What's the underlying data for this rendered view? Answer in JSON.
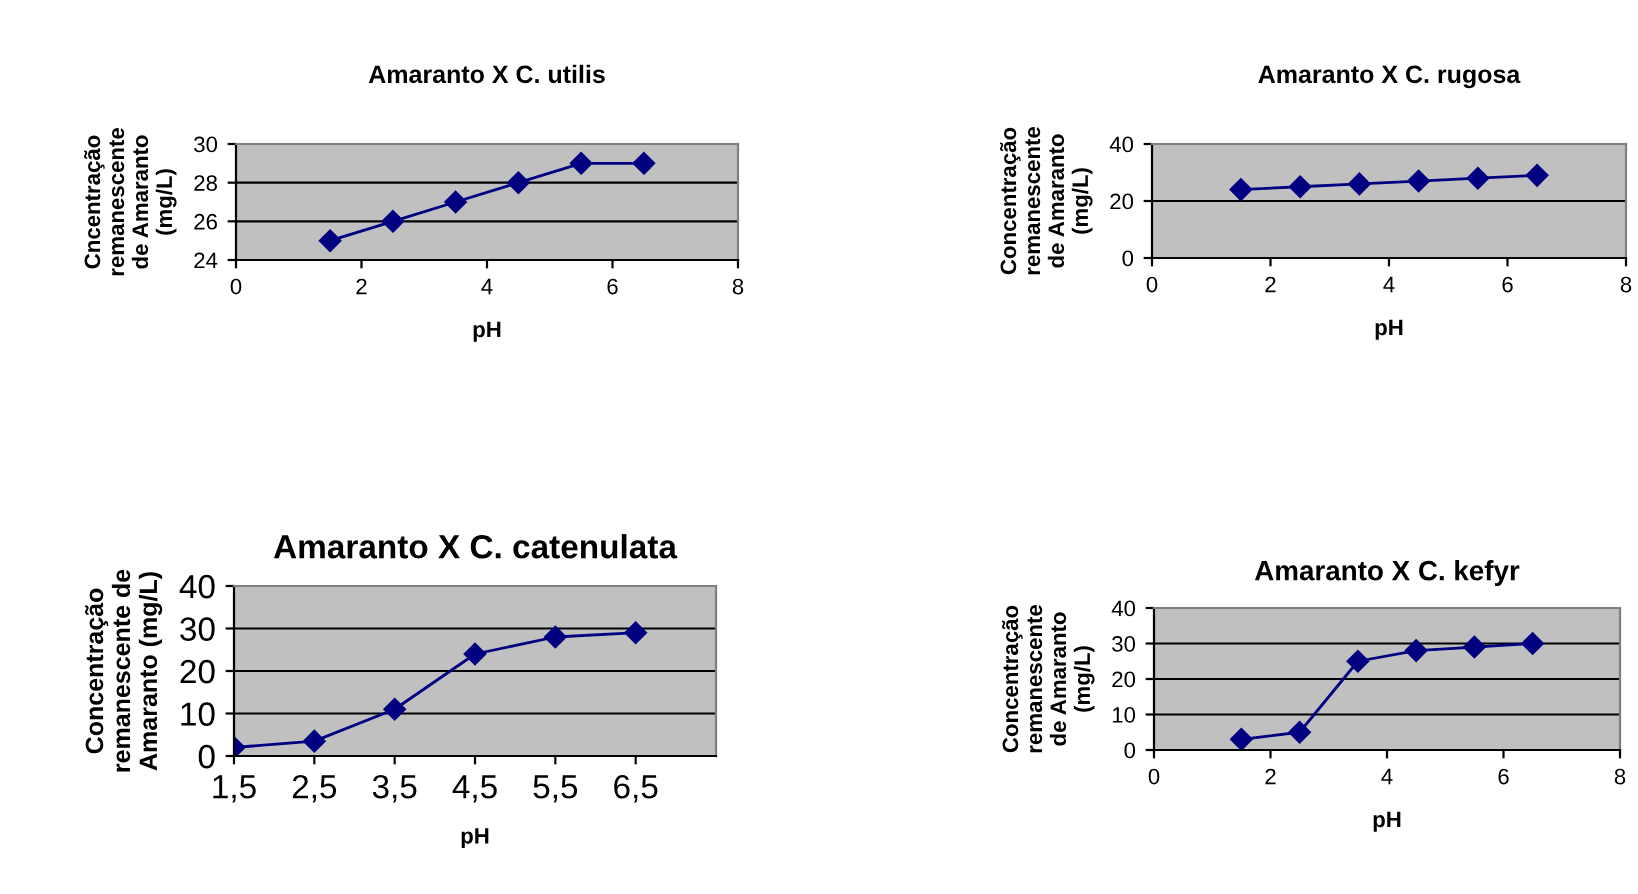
{
  "chart_data": [
    {
      "type": "line",
      "title": "Amaranto X C. utilis",
      "xlabel": "pH",
      "ylabel": "Cncentração\nremanescente\nde Amaranto\n(mg/L)",
      "x": [
        1.5,
        2.5,
        3.5,
        4.5,
        5.5,
        6.5
      ],
      "series": [
        {
          "color": "#000080",
          "values": [
            25,
            26,
            27,
            28,
            29,
            29
          ]
        }
      ],
      "xlim": [
        0,
        8
      ],
      "xticks": [
        0,
        2,
        4,
        6,
        8
      ],
      "ylim": [
        24,
        30
      ],
      "yticks": [
        24,
        26,
        28,
        30
      ],
      "grid": "y",
      "marker": "diamond",
      "line_style": "solid",
      "legend": false
    },
    {
      "type": "line",
      "title": "Amaranto X C. rugosa",
      "xlabel": "pH",
      "ylabel": "Concentração\nremanescente\nde Amaranto\n(mg/L)",
      "x": [
        1.5,
        2.5,
        3.5,
        4.5,
        5.5,
        6.5
      ],
      "series": [
        {
          "color": "#000080",
          "values": [
            24,
            25,
            26,
            27,
            28,
            29
          ]
        }
      ],
      "xlim": [
        0,
        8
      ],
      "xticks": [
        0,
        2,
        4,
        6,
        8
      ],
      "ylim": [
        0,
        40
      ],
      "yticks": [
        0,
        20,
        40
      ],
      "grid": "y",
      "marker": "diamond",
      "line_style": "solid",
      "legend": false
    },
    {
      "type": "line",
      "title": "Amaranto X C. catenulata",
      "xlabel": "pH",
      "ylabel": "Concentração\nremanescente de\nAmaranto (mg/L)",
      "categories": [
        "1,5",
        "2,5",
        "3,5",
        "4,5",
        "5,5",
        "6,5"
      ],
      "series": [
        {
          "color": "#000080",
          "values": [
            2,
            3.5,
            11,
            24,
            28,
            29
          ]
        }
      ],
      "ylim": [
        0,
        40
      ],
      "yticks": [
        0,
        10,
        20,
        30,
        40
      ],
      "grid": "y",
      "marker": "diamond",
      "line_style": "solid",
      "legend": false
    },
    {
      "type": "line",
      "title": "Amaranto X C. kefyr",
      "xlabel": "pH",
      "ylabel": "Concentração\nremanescente\nde Amaranto\n(mg/L)",
      "x": [
        1.5,
        2.5,
        3.5,
        4.5,
        5.5,
        6.5
      ],
      "series": [
        {
          "color": "#000080",
          "values": [
            3,
            5,
            25,
            28,
            29,
            30
          ]
        }
      ],
      "xlim": [
        0,
        8
      ],
      "xticks": [
        0,
        2,
        4,
        6,
        8
      ],
      "ylim": [
        0,
        40
      ],
      "yticks": [
        0,
        10,
        20,
        30,
        40
      ],
      "grid": "y",
      "marker": "diamond",
      "line_style": "solid",
      "legend": false
    }
  ]
}
